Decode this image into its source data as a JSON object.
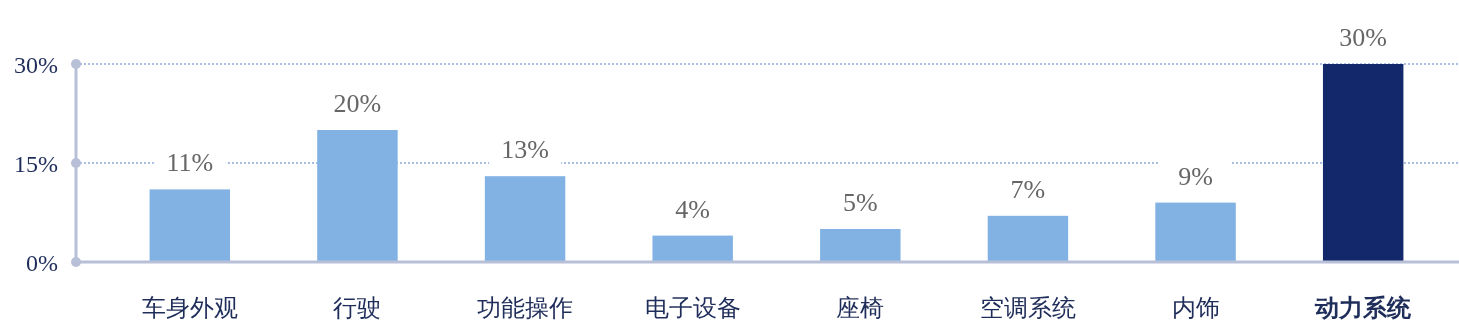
{
  "chart_data": {
    "type": "bar",
    "categories": [
      "车身外观",
      "行驶",
      "功能操作",
      "电子设备",
      "座椅",
      "空调系统",
      "内饰",
      "动力系统"
    ],
    "values": [
      11,
      20,
      13,
      4,
      5,
      7,
      9,
      30
    ],
    "colors": [
      "#82b2e3",
      "#82b2e3",
      "#82b2e3",
      "#82b2e3",
      "#82b2e3",
      "#82b2e3",
      "#82b2e3",
      "#12286a"
    ],
    "value_labels": [
      "11%",
      "20%",
      "13%",
      "4%",
      "5%",
      "7%",
      "9%",
      "30%"
    ],
    "ylim": [
      0,
      30
    ],
    "yticks": [
      {
        "value": 0,
        "label": "0%"
      },
      {
        "value": 15,
        "label": "15%"
      },
      {
        "value": 30,
        "label": "30%"
      }
    ],
    "ref_lines": [
      {
        "axis": "y",
        "value": 15,
        "color": "#a9bde6",
        "line_style": "dotted"
      },
      {
        "axis": "y",
        "value": 30,
        "color": "#a9bde6",
        "line_style": "dotted"
      }
    ]
  }
}
